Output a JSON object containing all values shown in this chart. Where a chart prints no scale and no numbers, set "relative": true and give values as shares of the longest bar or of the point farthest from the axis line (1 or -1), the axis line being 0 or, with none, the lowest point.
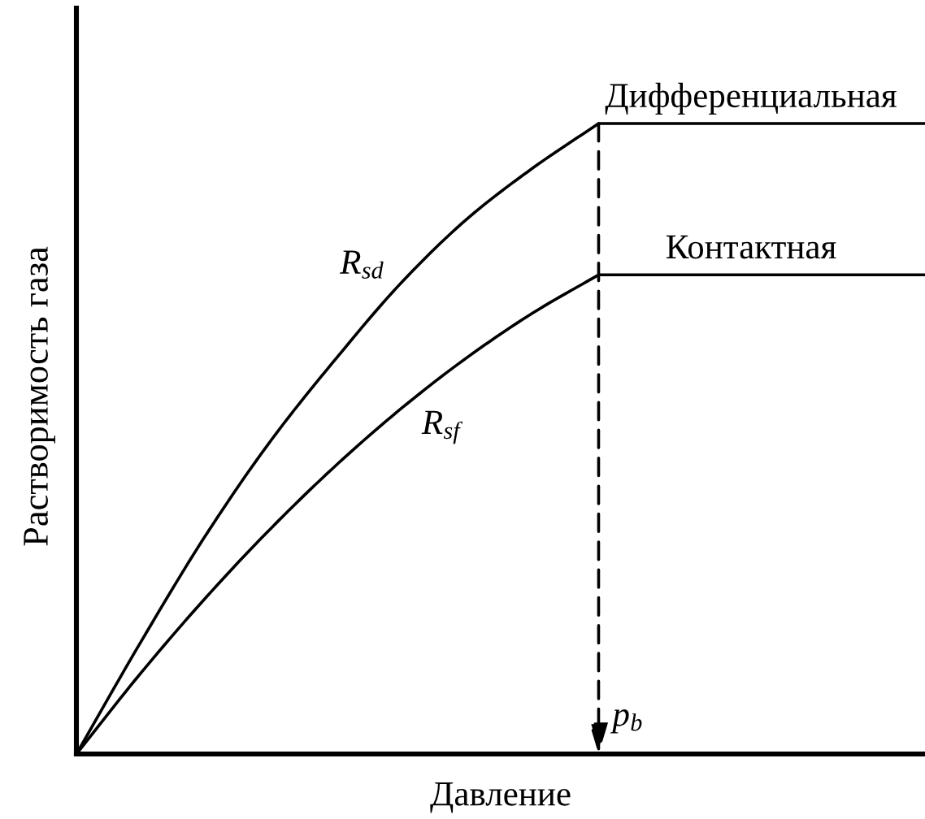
{
  "chart_data": {
    "type": "line",
    "relative": true,
    "xlabel": "Давление",
    "ylabel": "Растворимость газа",
    "categories": [
      null,
      null,
      null,
      null,
      null,
      null,
      null,
      null,
      null,
      null,
      null,
      null,
      null,
      null
    ],
    "series": [
      {
        "name": "Дифференциальная",
        "color": "#000000",
        "values": [
          0,
          0.18,
          0.35,
          0.5,
          0.63,
          0.75,
          0.85,
          0.93,
          1,
          1,
          1,
          1,
          1,
          1
        ]
      },
      {
        "name": "Контактная",
        "color": "#000000",
        "values": [
          0,
          0.13,
          0.25,
          0.36,
          0.46,
          0.55,
          0.63,
          0.7,
          0.76,
          0.76,
          0.76,
          0.76,
          0.76,
          0.76
        ]
      }
    ],
    "annotations": [
      "R$_{sd}$",
      "R$_{sf}$",
      "p$_{b}$"
    ]
  }
}
